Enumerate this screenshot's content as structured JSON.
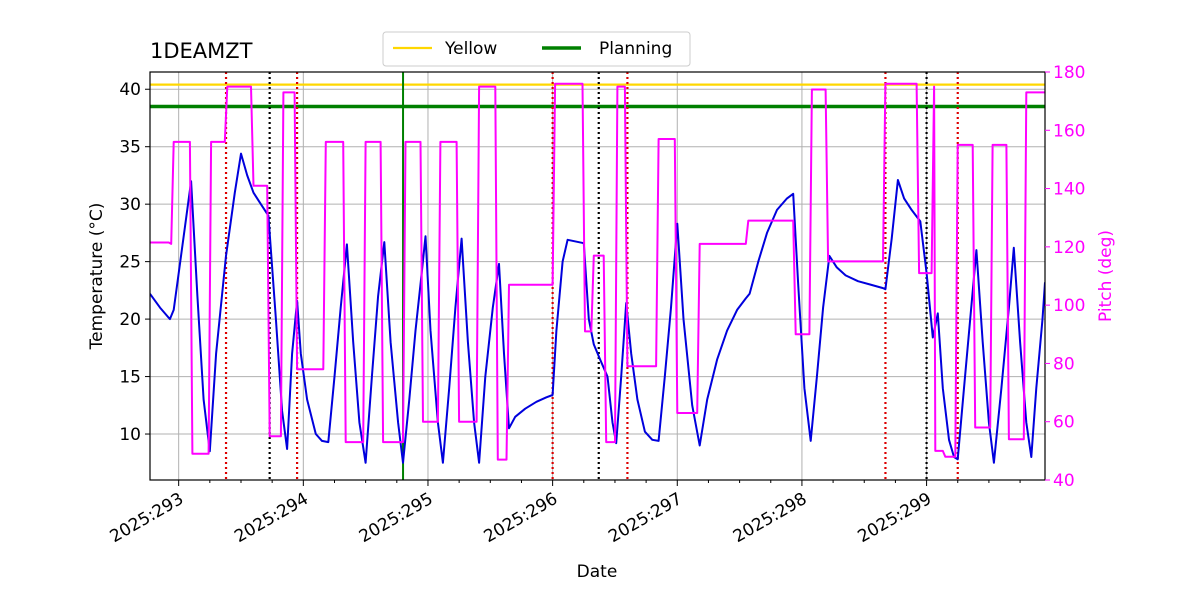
{
  "chart_data": {
    "type": "line",
    "title": "1DEAMZT",
    "xlabel": "Date",
    "ylabel": "Temperature ($^\\circ$C)",
    "ylabel_display": "Temperature (°C)",
    "y2label": "Pitch (deg)",
    "xlim": [
      292.77,
      299.95
    ],
    "ylim": [
      6.0,
      41.5
    ],
    "y2lim": [
      40,
      180
    ],
    "x_ticks": [
      293,
      294,
      295,
      296,
      297,
      298,
      299
    ],
    "x_tick_labels": [
      "2025:293",
      "2025:294",
      "2025:295",
      "2025:296",
      "2025:297",
      "2025:298",
      "2025:299"
    ],
    "y_ticks": [
      10,
      15,
      20,
      25,
      30,
      35,
      40
    ],
    "y2_ticks": [
      40,
      60,
      80,
      100,
      120,
      140,
      160,
      180
    ],
    "grid": true,
    "legend_placement": "top-center",
    "legend": [
      {
        "label": "Yellow",
        "color": "#ffd700"
      },
      {
        "label": "Planning",
        "color": "#008000"
      }
    ],
    "limits": {
      "yellow": 40.4,
      "planning": 38.5
    },
    "vertical_lines": {
      "planning_green": [
        294.8
      ],
      "red_dotted": [
        293.38,
        293.95,
        296.0,
        296.6,
        298.67,
        299.25
      ],
      "black_dotted": [
        293.73,
        296.37,
        299.0
      ]
    },
    "series": [
      {
        "name": "Temperature",
        "axis": "left",
        "color": "#0000dd",
        "points": [
          [
            292.77,
            22.2
          ],
          [
            292.85,
            21.0
          ],
          [
            292.93,
            20.0
          ],
          [
            292.96,
            20.8
          ],
          [
            293.0,
            24.0
          ],
          [
            293.05,
            28.0
          ],
          [
            293.1,
            32.0
          ],
          [
            293.15,
            22.0
          ],
          [
            293.2,
            13.0
          ],
          [
            293.25,
            8.5
          ],
          [
            293.3,
            17.0
          ],
          [
            293.38,
            25.5
          ],
          [
            293.45,
            31.0
          ],
          [
            293.5,
            34.4
          ],
          [
            293.55,
            32.5
          ],
          [
            293.6,
            31.0
          ],
          [
            293.66,
            30.0
          ],
          [
            293.72,
            29.0
          ],
          [
            293.78,
            20.0
          ],
          [
            293.83,
            12.0
          ],
          [
            293.87,
            8.7
          ],
          [
            293.91,
            17.0
          ],
          [
            293.95,
            21.6
          ],
          [
            293.98,
            17.0
          ],
          [
            294.03,
            13.0
          ],
          [
            294.1,
            10.0
          ],
          [
            294.15,
            9.4
          ],
          [
            294.2,
            9.3
          ],
          [
            294.25,
            15.0
          ],
          [
            294.3,
            21.0
          ],
          [
            294.35,
            26.5
          ],
          [
            294.4,
            18.0
          ],
          [
            294.45,
            11.0
          ],
          [
            294.5,
            7.5
          ],
          [
            294.55,
            15.0
          ],
          [
            294.6,
            22.0
          ],
          [
            294.65,
            26.7
          ],
          [
            294.7,
            18.0
          ],
          [
            294.76,
            11.0
          ],
          [
            294.8,
            7.5
          ],
          [
            294.85,
            13.0
          ],
          [
            294.9,
            19.0
          ],
          [
            294.95,
            24.0
          ],
          [
            294.98,
            27.2
          ],
          [
            295.02,
            19.0
          ],
          [
            295.08,
            11.0
          ],
          [
            295.12,
            7.5
          ],
          [
            295.17,
            14.0
          ],
          [
            295.22,
            21.0
          ],
          [
            295.27,
            27.0
          ],
          [
            295.32,
            18.0
          ],
          [
            295.37,
            11.0
          ],
          [
            295.41,
            7.5
          ],
          [
            295.46,
            15.0
          ],
          [
            295.52,
            21.0
          ],
          [
            295.57,
            24.8
          ],
          [
            295.61,
            17.0
          ],
          [
            295.65,
            10.5
          ],
          [
            295.7,
            11.5
          ],
          [
            295.78,
            12.2
          ],
          [
            295.87,
            12.8
          ],
          [
            295.95,
            13.2
          ],
          [
            296.0,
            13.4
          ],
          [
            296.03,
            19.0
          ],
          [
            296.08,
            25.0
          ],
          [
            296.12,
            26.9
          ],
          [
            296.25,
            26.6
          ],
          [
            296.29,
            20.0
          ],
          [
            296.33,
            17.8
          ],
          [
            296.38,
            16.5
          ],
          [
            296.42,
            15.5
          ],
          [
            296.44,
            15.0
          ],
          [
            296.48,
            11.0
          ],
          [
            296.51,
            9.2
          ],
          [
            296.55,
            15.0
          ],
          [
            296.59,
            21.4
          ],
          [
            296.63,
            17.0
          ],
          [
            296.68,
            13.0
          ],
          [
            296.74,
            10.2
          ],
          [
            296.8,
            9.5
          ],
          [
            296.85,
            9.4
          ],
          [
            296.9,
            15.0
          ],
          [
            296.95,
            21.0
          ],
          [
            297.0,
            28.3
          ],
          [
            297.05,
            20.0
          ],
          [
            297.12,
            12.5
          ],
          [
            297.18,
            9.0
          ],
          [
            297.24,
            13.0
          ],
          [
            297.32,
            16.5
          ],
          [
            297.4,
            19.0
          ],
          [
            297.48,
            20.8
          ],
          [
            297.55,
            21.8
          ],
          [
            297.58,
            22.2
          ],
          [
            297.65,
            25.0
          ],
          [
            297.72,
            27.5
          ],
          [
            297.8,
            29.5
          ],
          [
            297.88,
            30.5
          ],
          [
            297.93,
            30.9
          ],
          [
            297.97,
            23.0
          ],
          [
            298.02,
            14.0
          ],
          [
            298.07,
            9.4
          ],
          [
            298.12,
            15.0
          ],
          [
            298.17,
            21.0
          ],
          [
            298.22,
            25.5
          ],
          [
            298.28,
            24.5
          ],
          [
            298.35,
            23.8
          ],
          [
            298.45,
            23.3
          ],
          [
            298.55,
            23.0
          ],
          [
            298.65,
            22.7
          ],
          [
            298.67,
            22.6
          ],
          [
            298.72,
            27.0
          ],
          [
            298.77,
            32.1
          ],
          [
            298.82,
            30.5
          ],
          [
            298.88,
            29.5
          ],
          [
            298.95,
            28.5
          ],
          [
            299.0,
            24.0
          ],
          [
            299.05,
            18.4
          ],
          [
            299.09,
            20.5
          ],
          [
            299.13,
            14.0
          ],
          [
            299.18,
            9.5
          ],
          [
            299.22,
            8.0
          ],
          [
            299.25,
            7.8
          ],
          [
            299.3,
            14.0
          ],
          [
            299.35,
            20.0
          ],
          [
            299.4,
            26.0
          ],
          [
            299.45,
            18.0
          ],
          [
            299.5,
            11.0
          ],
          [
            299.54,
            7.5
          ],
          [
            299.6,
            14.0
          ],
          [
            299.66,
            21.0
          ],
          [
            299.7,
            26.2
          ],
          [
            299.75,
            18.0
          ],
          [
            299.8,
            11.0
          ],
          [
            299.84,
            8.0
          ],
          [
            299.88,
            14.0
          ],
          [
            299.93,
            20.0
          ],
          [
            299.95,
            23.2
          ]
        ]
      },
      {
        "name": "Pitch",
        "axis": "right",
        "color": "#ff00ff",
        "points": [
          [
            292.77,
            121.5
          ],
          [
            292.92,
            121.5
          ],
          [
            292.94,
            121
          ],
          [
            292.96,
            156
          ],
          [
            293.09,
            156
          ],
          [
            293.11,
            49
          ],
          [
            293.24,
            49
          ],
          [
            293.26,
            156
          ],
          [
            293.37,
            156
          ],
          [
            293.39,
            175
          ],
          [
            293.58,
            175
          ],
          [
            293.6,
            141
          ],
          [
            293.71,
            141
          ],
          [
            293.73,
            55
          ],
          [
            293.82,
            55
          ],
          [
            293.84,
            173
          ],
          [
            293.93,
            173
          ],
          [
            293.95,
            78
          ],
          [
            294.16,
            78
          ],
          [
            294.18,
            156
          ],
          [
            294.32,
            156
          ],
          [
            294.34,
            53
          ],
          [
            294.48,
            53
          ],
          [
            294.5,
            156
          ],
          [
            294.62,
            156
          ],
          [
            294.64,
            53
          ],
          [
            294.8,
            53
          ],
          [
            294.82,
            156
          ],
          [
            294.94,
            156
          ],
          [
            294.96,
            60
          ],
          [
            295.08,
            60
          ],
          [
            295.1,
            156
          ],
          [
            295.23,
            156
          ],
          [
            295.25,
            60
          ],
          [
            295.39,
            60
          ],
          [
            295.41,
            175
          ],
          [
            295.54,
            175
          ],
          [
            295.56,
            47
          ],
          [
            295.63,
            47
          ],
          [
            295.65,
            107
          ],
          [
            296.0,
            107
          ],
          [
            296.02,
            176
          ],
          [
            296.24,
            176
          ],
          [
            296.26,
            91
          ],
          [
            296.31,
            91
          ],
          [
            296.33,
            117
          ],
          [
            296.41,
            117
          ],
          [
            296.43,
            53
          ],
          [
            296.5,
            53
          ],
          [
            296.52,
            175
          ],
          [
            296.58,
            175
          ],
          [
            296.6,
            79
          ],
          [
            296.83,
            79
          ],
          [
            296.85,
            157
          ],
          [
            296.98,
            157
          ],
          [
            297.0,
            63
          ],
          [
            297.16,
            63
          ],
          [
            297.18,
            121
          ],
          [
            297.55,
            121
          ],
          [
            297.57,
            129
          ],
          [
            297.93,
            129
          ],
          [
            297.95,
            90
          ],
          [
            298.06,
            90
          ],
          [
            298.08,
            174
          ],
          [
            298.19,
            174
          ],
          [
            298.21,
            115
          ],
          [
            298.65,
            115
          ],
          [
            298.67,
            176
          ],
          [
            298.92,
            176
          ],
          [
            298.94,
            111
          ],
          [
            299.04,
            111
          ],
          [
            299.06,
            175
          ],
          [
            299.07,
            50
          ],
          [
            299.13,
            50
          ],
          [
            299.15,
            48
          ],
          [
            299.2,
            48
          ],
          [
            299.23,
            48
          ],
          [
            299.25,
            155
          ],
          [
            299.37,
            155
          ],
          [
            299.39,
            58
          ],
          [
            299.51,
            58
          ],
          [
            299.53,
            155
          ],
          [
            299.64,
            155
          ],
          [
            299.66,
            54
          ],
          [
            299.78,
            54
          ],
          [
            299.8,
            173
          ],
          [
            299.95,
            173
          ]
        ]
      }
    ]
  }
}
